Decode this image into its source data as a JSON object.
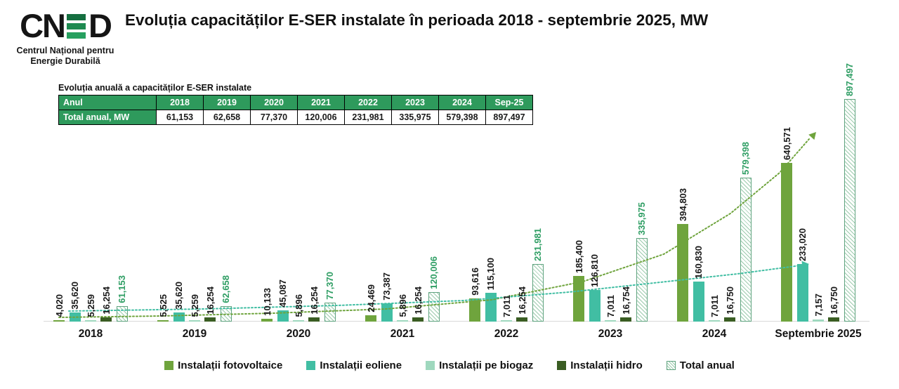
{
  "logo": {
    "brand_left": "CN",
    "brand_right": "D",
    "e_bar_colors": [
      "#156F40",
      "#1E8A50",
      "#27A05F"
    ],
    "subtitle_line1": "Centrul Național pentru",
    "subtitle_line2": "Energie Durabilă"
  },
  "title": "Evoluția capacităților E-SER instalate în perioada 2018 - septembrie 2025, MW",
  "summary_table": {
    "caption": "Evoluția anuală a capacităților E-SER instalate",
    "columns": [
      "Anul",
      "2018",
      "2019",
      "2020",
      "2021",
      "2022",
      "2023",
      "2024",
      "Sep-25"
    ],
    "row_label": "Total anual, MW",
    "row_values": [
      "61,153",
      "62,658",
      "77,370",
      "120,006",
      "231,981",
      "335,975",
      "579,398",
      "897,497"
    ],
    "header_bg": "#2E9A5C",
    "header_text_color": "#FFFFFF"
  },
  "chart_data": {
    "type": "bar",
    "title": "Evoluția capacităților E-SER instalate în perioada 2018 - septembrie 2025, MW",
    "unit": "MW",
    "categories": [
      "2018",
      "2019",
      "2020",
      "2021",
      "2022",
      "2023",
      "2024",
      "Septembrie 2025"
    ],
    "series": [
      {
        "name": "Instalații fotovoltaice",
        "color": "#6FA43D",
        "values": [
          4020,
          5525,
          10133,
          24469,
          93616,
          185400,
          394803,
          640571
        ]
      },
      {
        "name": "Instalații eoliene",
        "color": "#41BEA3",
        "values": [
          35620,
          35620,
          45087,
          73387,
          115100,
          126810,
          160830,
          233020
        ]
      },
      {
        "name": "Instalații pe biogaz",
        "color": "#9FD8BE",
        "values": [
          5259,
          5259,
          5896,
          5896,
          7011,
          7011,
          7011,
          7157
        ]
      },
      {
        "name": "Instalații hidro",
        "color": "#3A5D23",
        "values": [
          16254,
          16254,
          16254,
          16254,
          16254,
          16754,
          16750,
          16750
        ]
      },
      {
        "name": "Total anual",
        "color": "hatch",
        "hatch_line_color": "#9CCBAD",
        "border_color": "#5FA37F",
        "values": [
          61153,
          62658,
          77370,
          120006,
          231981,
          335975,
          579398,
          897497
        ]
      }
    ],
    "value_label_color": "#1A1A1A",
    "total_label_color": "#2F9E64",
    "ylim": [
      0,
      950000
    ],
    "grid": false,
    "legend_position": "bottom",
    "trend_lines": [
      {
        "series": "Instalații fotovoltaice",
        "color": "#6FA43D",
        "style": "dotted-arrow"
      },
      {
        "series": "Instalații eoliene",
        "color": "#41BEA3",
        "style": "dotted-arrow"
      }
    ]
  }
}
